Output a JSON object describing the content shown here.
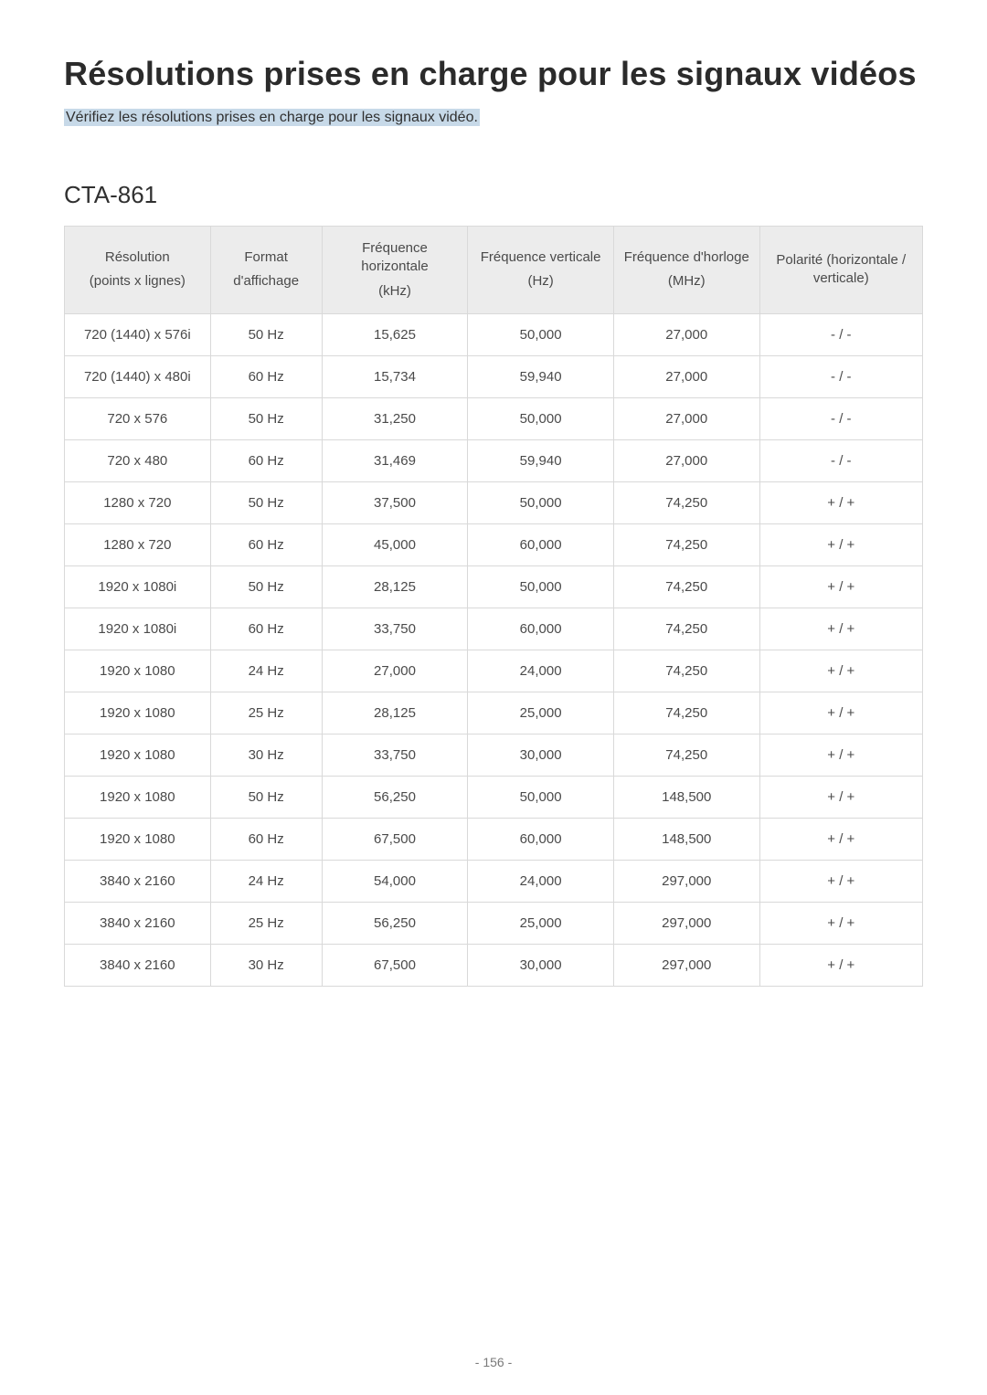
{
  "title": "Résolutions prises en charge pour les signaux vidéos",
  "subtitle": "Vérifiez les résolutions prises en charge pour les signaux vidéo.",
  "section_heading": "CTA-861",
  "page_number": "- 156 -",
  "table": {
    "type": "table",
    "header_bg": "#ececec",
    "border_color": "#d9d9d9",
    "text_color": "#4a4a4a",
    "fontsize": 15,
    "columns": [
      {
        "line1": "Résolution",
        "line2": "(points x lignes)"
      },
      {
        "line1": "Format",
        "line2": "d'affichage"
      },
      {
        "line1": "Fréquence horizontale",
        "line2": "(kHz)"
      },
      {
        "line1": "Fréquence verticale",
        "line2": "(Hz)"
      },
      {
        "line1": "Fréquence d'horloge",
        "line2": "(MHz)"
      },
      {
        "line1": "Polarité (horizontale / verticale)",
        "line2": ""
      }
    ],
    "rows": [
      [
        "720 (1440) x 576i",
        "50 Hz",
        "15,625",
        "50,000",
        "27,000",
        "- / -"
      ],
      [
        "720 (1440) x 480i",
        "60 Hz",
        "15,734",
        "59,940",
        "27,000",
        "- / -"
      ],
      [
        "720 x 576",
        "50 Hz",
        "31,250",
        "50,000",
        "27,000",
        "- / -"
      ],
      [
        "720 x 480",
        "60 Hz",
        "31,469",
        "59,940",
        "27,000",
        "- / -"
      ],
      [
        "1280 x 720",
        "50 Hz",
        "37,500",
        "50,000",
        "74,250",
        "+ / +"
      ],
      [
        "1280 x 720",
        "60 Hz",
        "45,000",
        "60,000",
        "74,250",
        "+ / +"
      ],
      [
        "1920 x 1080i",
        "50 Hz",
        "28,125",
        "50,000",
        "74,250",
        "+ / +"
      ],
      [
        "1920 x 1080i",
        "60 Hz",
        "33,750",
        "60,000",
        "74,250",
        "+ / +"
      ],
      [
        "1920 x 1080",
        "24 Hz",
        "27,000",
        "24,000",
        "74,250",
        "+ / +"
      ],
      [
        "1920 x 1080",
        "25 Hz",
        "28,125",
        "25,000",
        "74,250",
        "+ / +"
      ],
      [
        "1920 x 1080",
        "30 Hz",
        "33,750",
        "30,000",
        "74,250",
        "+ / +"
      ],
      [
        "1920 x 1080",
        "50 Hz",
        "56,250",
        "50,000",
        "148,500",
        "+ / +"
      ],
      [
        "1920 x 1080",
        "60 Hz",
        "67,500",
        "60,000",
        "148,500",
        "+ / +"
      ],
      [
        "3840 x 2160",
        "24 Hz",
        "54,000",
        "24,000",
        "297,000",
        "+ / +"
      ],
      [
        "3840 x 2160",
        "25 Hz",
        "56,250",
        "25,000",
        "297,000",
        "+ / +"
      ],
      [
        "3840 x 2160",
        "30 Hz",
        "67,500",
        "30,000",
        "297,000",
        "+ / +"
      ]
    ]
  }
}
